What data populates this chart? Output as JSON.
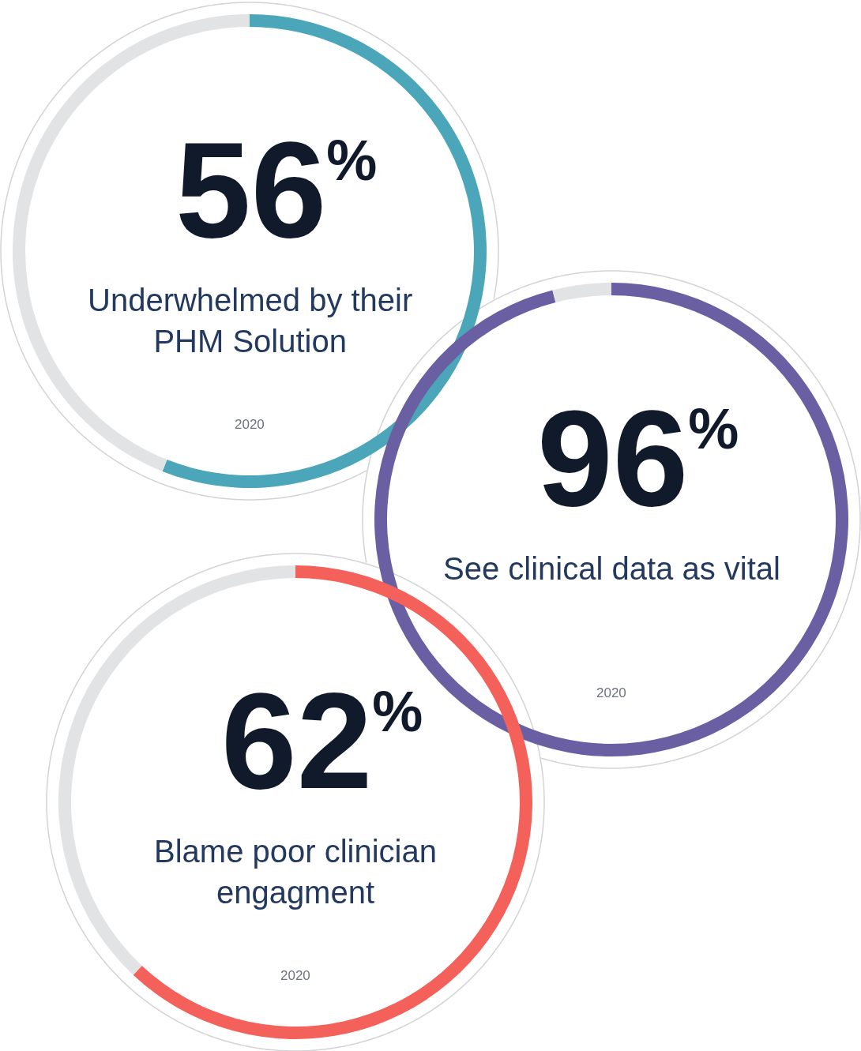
{
  "chart_data": [
    {
      "type": "donut",
      "categories": [
        null,
        null
      ],
      "values": [
        56,
        44
      ],
      "colors": [
        "#4aa6b8",
        "#e2e3e5"
      ],
      "value_labels": [
        "56$^{%}$",
        null
      ],
      "title": "Underwhelmed by their PHM Solution",
      "annotations": [
        "2020"
      ]
    },
    {
      "type": "donut",
      "categories": [
        null,
        null
      ],
      "values": [
        96,
        4
      ],
      "colors": [
        "#6a5fa3",
        "#e2e3e5"
      ],
      "value_labels": [
        "96$^{%}$",
        null
      ],
      "title": "See clinical data as vital",
      "annotations": [
        "2020"
      ]
    },
    {
      "type": "donut",
      "categories": [
        null,
        null
      ],
      "values": [
        62,
        38
      ],
      "colors": [
        "#f4605a",
        "#e2e3e5"
      ],
      "value_labels": [
        "62$^{%}$",
        null
      ],
      "title": "Blame poor clinician engagment",
      "annotations": [
        "2020"
      ]
    }
  ]
}
